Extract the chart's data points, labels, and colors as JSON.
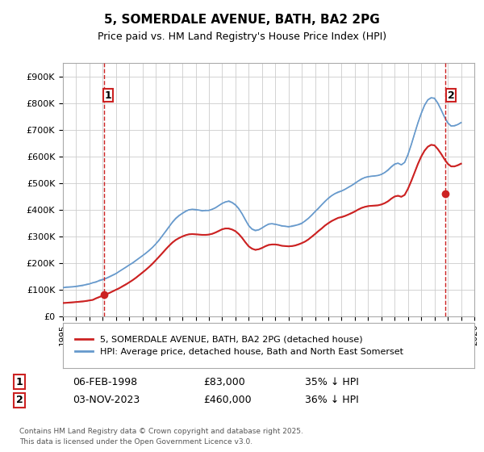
{
  "title": "5, SOMERDALE AVENUE, BATH, BA2 2PG",
  "subtitle": "Price paid vs. HM Land Registry's House Price Index (HPI)",
  "ylabel_ticks": [
    "£0",
    "£100K",
    "£200K",
    "£300K",
    "£400K",
    "£500K",
    "£600K",
    "£700K",
    "£800K",
    "£900K"
  ],
  "ytick_values": [
    0,
    100000,
    200000,
    300000,
    400000,
    500000,
    600000,
    700000,
    800000,
    900000
  ],
  "xmin": 1995,
  "xmax": 2026,
  "ymin": 0,
  "ymax": 950000,
  "purchase1": {
    "date": "06-FEB-1998",
    "price": 83000,
    "label": "1",
    "x": 1998.1
  },
  "purchase2": {
    "date": "03-NOV-2023",
    "price": 460000,
    "label": "2",
    "x": 2023.84
  },
  "legend_property": "5, SOMERDALE AVENUE, BATH, BA2 2PG (detached house)",
  "legend_hpi": "HPI: Average price, detached house, Bath and North East Somerset",
  "footer1": "Contains HM Land Registry data © Crown copyright and database right 2025.",
  "footer2": "This data is licensed under the Open Government Licence v3.0.",
  "hpi_color": "#6699cc",
  "property_color": "#cc2222",
  "background_color": "#ffffff",
  "grid_color": "#cccccc",
  "hpi_data_x": [
    1995.0,
    1995.25,
    1995.5,
    1995.75,
    1996.0,
    1996.25,
    1996.5,
    1996.75,
    1997.0,
    1997.25,
    1997.5,
    1997.75,
    1998.0,
    1998.25,
    1998.5,
    1998.75,
    1999.0,
    1999.25,
    1999.5,
    1999.75,
    2000.0,
    2000.25,
    2000.5,
    2000.75,
    2001.0,
    2001.25,
    2001.5,
    2001.75,
    2002.0,
    2002.25,
    2002.5,
    2002.75,
    2003.0,
    2003.25,
    2003.5,
    2003.75,
    2004.0,
    2004.25,
    2004.5,
    2004.75,
    2005.0,
    2005.25,
    2005.5,
    2005.75,
    2006.0,
    2006.25,
    2006.5,
    2006.75,
    2007.0,
    2007.25,
    2007.5,
    2007.75,
    2008.0,
    2008.25,
    2008.5,
    2008.75,
    2009.0,
    2009.25,
    2009.5,
    2009.75,
    2010.0,
    2010.25,
    2010.5,
    2010.75,
    2011.0,
    2011.25,
    2011.5,
    2011.75,
    2012.0,
    2012.25,
    2012.5,
    2012.75,
    2013.0,
    2013.25,
    2013.5,
    2013.75,
    2014.0,
    2014.25,
    2014.5,
    2014.75,
    2015.0,
    2015.25,
    2015.5,
    2015.75,
    2016.0,
    2016.25,
    2016.5,
    2016.75,
    2017.0,
    2017.25,
    2017.5,
    2017.75,
    2018.0,
    2018.25,
    2018.5,
    2018.75,
    2019.0,
    2019.25,
    2019.5,
    2019.75,
    2020.0,
    2020.25,
    2020.5,
    2020.75,
    2021.0,
    2021.25,
    2021.5,
    2021.75,
    2022.0,
    2022.25,
    2022.5,
    2022.75,
    2023.0,
    2023.25,
    2023.5,
    2023.75,
    2024.0,
    2024.25,
    2024.5,
    2024.75,
    2025.0
  ],
  "hpi_data_y": [
    108000,
    109000,
    110000,
    111000,
    113000,
    115000,
    117000,
    119000,
    122000,
    126000,
    130000,
    134000,
    138000,
    143000,
    149000,
    155000,
    161000,
    169000,
    177000,
    185000,
    193000,
    201000,
    210000,
    219000,
    228000,
    237000,
    248000,
    259000,
    272000,
    287000,
    303000,
    320000,
    337000,
    353000,
    367000,
    378000,
    387000,
    395000,
    400000,
    402000,
    401000,
    399000,
    397000,
    397000,
    398000,
    402000,
    408000,
    416000,
    424000,
    430000,
    432000,
    427000,
    418000,
    404000,
    385000,
    362000,
    341000,
    328000,
    323000,
    325000,
    332000,
    340000,
    346000,
    348000,
    346000,
    343000,
    340000,
    338000,
    337000,
    338000,
    341000,
    345000,
    350000,
    358000,
    368000,
    380000,
    393000,
    406000,
    419000,
    432000,
    443000,
    453000,
    461000,
    467000,
    471000,
    477000,
    484000,
    491000,
    499000,
    508000,
    516000,
    521000,
    524000,
    526000,
    527000,
    529000,
    533000,
    540000,
    550000,
    562000,
    572000,
    575000,
    569000,
    578000,
    607000,
    645000,
    686000,
    726000,
    762000,
    793000,
    813000,
    821000,
    818000,
    800000,
    775000,
    748000,
    726000,
    715000,
    715000,
    720000,
    727000
  ],
  "prop_data_x": [
    1995.0,
    1995.25,
    1995.5,
    1995.75,
    1996.0,
    1996.25,
    1996.5,
    1996.75,
    1997.0,
    1997.25,
    1997.5,
    1997.75,
    1998.0,
    1998.25,
    1998.5,
    1998.75,
    1999.0,
    1999.25,
    1999.5,
    1999.75,
    2000.0,
    2000.25,
    2000.5,
    2000.75,
    2001.0,
    2001.25,
    2001.5,
    2001.75,
    2002.0,
    2002.25,
    2002.5,
    2002.75,
    2003.0,
    2003.25,
    2003.5,
    2003.75,
    2004.0,
    2004.25,
    2004.5,
    2004.75,
    2005.0,
    2005.25,
    2005.5,
    2005.75,
    2006.0,
    2006.25,
    2006.5,
    2006.75,
    2007.0,
    2007.25,
    2007.5,
    2007.75,
    2008.0,
    2008.25,
    2008.5,
    2008.75,
    2009.0,
    2009.25,
    2009.5,
    2009.75,
    2010.0,
    2010.25,
    2010.5,
    2010.75,
    2011.0,
    2011.25,
    2011.5,
    2011.75,
    2012.0,
    2012.25,
    2012.5,
    2012.75,
    2013.0,
    2013.25,
    2013.5,
    2013.75,
    2014.0,
    2014.25,
    2014.5,
    2014.75,
    2015.0,
    2015.25,
    2015.5,
    2015.75,
    2016.0,
    2016.25,
    2016.5,
    2016.75,
    2017.0,
    2017.25,
    2017.5,
    2017.75,
    2018.0,
    2018.25,
    2018.5,
    2018.75,
    2019.0,
    2019.25,
    2019.5,
    2019.75,
    2020.0,
    2020.25,
    2020.5,
    2020.75,
    2021.0,
    2021.25,
    2021.5,
    2021.75,
    2022.0,
    2022.25,
    2022.5,
    2022.75,
    2023.0,
    2023.25,
    2023.5,
    2023.75,
    2024.0,
    2024.25,
    2024.5,
    2024.75,
    2025.0
  ],
  "prop_data_y": [
    50000,
    51000,
    52000,
    53000,
    54000,
    55000,
    56000,
    58000,
    60000,
    62000,
    68000,
    73000,
    78000,
    83000,
    88000,
    94000,
    100000,
    106000,
    113000,
    120000,
    128000,
    136000,
    145000,
    155000,
    165000,
    175000,
    186000,
    198000,
    211000,
    224000,
    238000,
    252000,
    265000,
    277000,
    287000,
    294000,
    300000,
    305000,
    308000,
    309000,
    308000,
    307000,
    306000,
    306000,
    307000,
    310000,
    315000,
    321000,
    327000,
    330000,
    330000,
    326000,
    320000,
    309000,
    295000,
    278000,
    263000,
    254000,
    250000,
    252000,
    257000,
    263000,
    268000,
    270000,
    270000,
    268000,
    265000,
    264000,
    263000,
    264000,
    266000,
    270000,
    275000,
    281000,
    289000,
    299000,
    309000,
    320000,
    330000,
    341000,
    350000,
    358000,
    364000,
    370000,
    373000,
    377000,
    382000,
    388000,
    394000,
    401000,
    407000,
    411000,
    414000,
    415000,
    416000,
    417000,
    420000,
    425000,
    432000,
    442000,
    450000,
    453000,
    449000,
    456000,
    479000,
    508000,
    540000,
    572000,
    600000,
    622000,
    637000,
    644000,
    642000,
    628000,
    610000,
    590000,
    573000,
    563000,
    563000,
    567000,
    573000
  ]
}
